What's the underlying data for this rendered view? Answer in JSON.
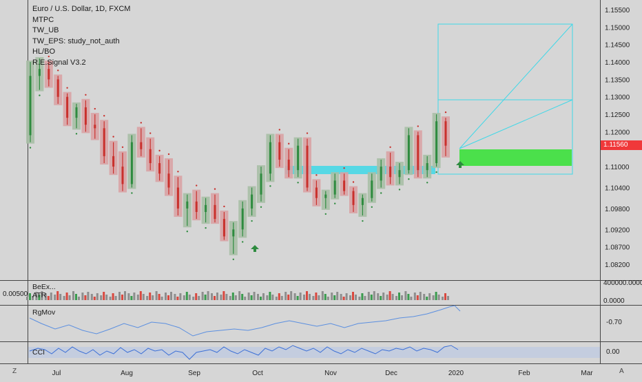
{
  "header": {
    "symbol_title": "Euro / U.S. Dollar, 1D, FXCM",
    "indicators": [
      "MTPC",
      "TW_UB",
      "TW_EPS: study_not_auth",
      "HL/BO",
      "R.E.Signal V3.2"
    ]
  },
  "price_axis": {
    "ticks": [
      "1.15500",
      "1.15000",
      "1.14500",
      "1.14000",
      "1.13500",
      "1.13000",
      "1.12500",
      "1.12000",
      "1.11000",
      "1.10400",
      "1.09800",
      "1.09200",
      "1.08700",
      "1.08200"
    ],
    "current_price": "1.11560"
  },
  "volume_pane": {
    "label": "BeEx...",
    "sublabel": "ATR",
    "left_value": "0.00500",
    "axis_ticks": [
      "400000.0000",
      "0.0000"
    ]
  },
  "rgmov_pane": {
    "label": "RgMov",
    "axis_tick": "-0.70"
  },
  "cci_pane": {
    "label": "CCI",
    "axis_tick": "0.00"
  },
  "time_axis": {
    "labels": [
      "Jul",
      "Aug",
      "Sep",
      "Oct",
      "Nov",
      "Dec",
      "2020",
      "Feb",
      "Mar"
    ]
  },
  "corner_icons": {
    "left": "Z",
    "right": "A"
  },
  "colors": {
    "background": "#d6d6d6",
    "up_candle": "#2e8b3f",
    "down_candle": "#c9302c",
    "up_box": "#a9bfa6",
    "down_box": "#d9a3a5",
    "cyan": "#3fd8e8",
    "green_zone": "#4be04b",
    "line_blue": "#5b8fe0",
    "price_tag": "#f0383a"
  },
  "chart_data": {
    "type": "candlestick",
    "series": [
      {
        "values": [
          [
            1.119,
            1.14,
            1.117,
            1.136
          ],
          [
            1.136,
            1.141,
            1.132,
            1.138
          ],
          [
            1.138,
            1.14,
            1.133,
            1.135
          ],
          [
            1.135,
            1.136,
            1.128,
            1.13
          ],
          [
            1.13,
            1.131,
            1.122,
            1.124
          ],
          [
            1.124,
            1.128,
            1.121,
            1.127
          ],
          [
            1.127,
            1.129,
            1.12,
            1.122
          ],
          [
            1.122,
            1.125,
            1.118,
            1.121
          ],
          [
            1.121,
            1.123,
            1.111,
            1.113
          ],
          [
            1.113,
            1.117,
            1.108,
            1.11
          ],
          [
            1.11,
            1.114,
            1.103,
            1.105
          ],
          [
            1.105,
            1.119,
            1.104,
            1.117
          ],
          [
            1.117,
            1.121,
            1.113,
            1.115
          ],
          [
            1.115,
            1.118,
            1.109,
            1.111
          ],
          [
            1.111,
            1.113,
            1.106,
            1.108
          ],
          [
            1.108,
            1.112,
            1.102,
            1.104
          ],
          [
            1.104,
            1.107,
            1.096,
            1.098
          ],
          [
            1.098,
            1.102,
            1.093,
            1.1
          ],
          [
            1.1,
            1.103,
            1.095,
            1.097
          ],
          [
            1.097,
            1.101,
            1.094,
            1.099
          ],
          [
            1.099,
            1.102,
            1.094,
            1.095
          ],
          [
            1.095,
            1.097,
            1.089,
            1.09
          ],
          [
            1.09,
            1.094,
            1.085,
            1.092
          ],
          [
            1.092,
            1.1,
            1.09,
            1.098
          ],
          [
            1.098,
            1.104,
            1.096,
            1.102
          ],
          [
            1.102,
            1.11,
            1.1,
            1.108
          ],
          [
            1.108,
            1.119,
            1.106,
            1.117
          ],
          [
            1.117,
            1.119,
            1.11,
            1.112
          ],
          [
            1.112,
            1.115,
            1.107,
            1.109
          ],
          [
            1.109,
            1.118,
            1.107,
            1.116
          ],
          [
            1.116,
            1.118,
            1.103,
            1.104
          ],
          [
            1.104,
            1.106,
            1.099,
            1.101
          ],
          [
            1.101,
            1.103,
            1.098,
            1.102
          ],
          [
            1.102,
            1.108,
            1.101,
            1.106
          ],
          [
            1.106,
            1.108,
            1.102,
            1.103
          ],
          [
            1.103,
            1.104,
            1.097,
            1.099
          ],
          [
            1.099,
            1.102,
            1.096,
            1.101
          ],
          [
            1.101,
            1.108,
            1.1,
            1.106
          ],
          [
            1.106,
            1.112,
            1.104,
            1.11
          ],
          [
            1.11,
            1.114,
            1.105,
            1.107
          ],
          [
            1.107,
            1.111,
            1.105,
            1.109
          ],
          [
            1.109,
            1.121,
            1.108,
            1.119
          ],
          [
            1.119,
            1.12,
            1.107,
            1.109
          ],
          [
            1.109,
            1.113,
            1.107,
            1.111
          ],
          [
            1.111,
            1.125,
            1.11,
            1.123
          ],
          [
            1.123,
            1.124,
            1.113,
            1.116
          ]
        ]
      }
    ],
    "annotations": [
      {
        "type": "zone",
        "color": "cyan",
        "y_range": [
          1.1085,
          1.1105
        ]
      },
      {
        "type": "zone",
        "color": "green",
        "y_range": [
          1.1105,
          1.1152
        ]
      },
      {
        "type": "arrow",
        "direction": "up",
        "at_price": 1.087
      },
      {
        "type": "arrow",
        "direction": "up",
        "at_price": 1.1095
      }
    ],
    "current_price": 1.1156
  }
}
